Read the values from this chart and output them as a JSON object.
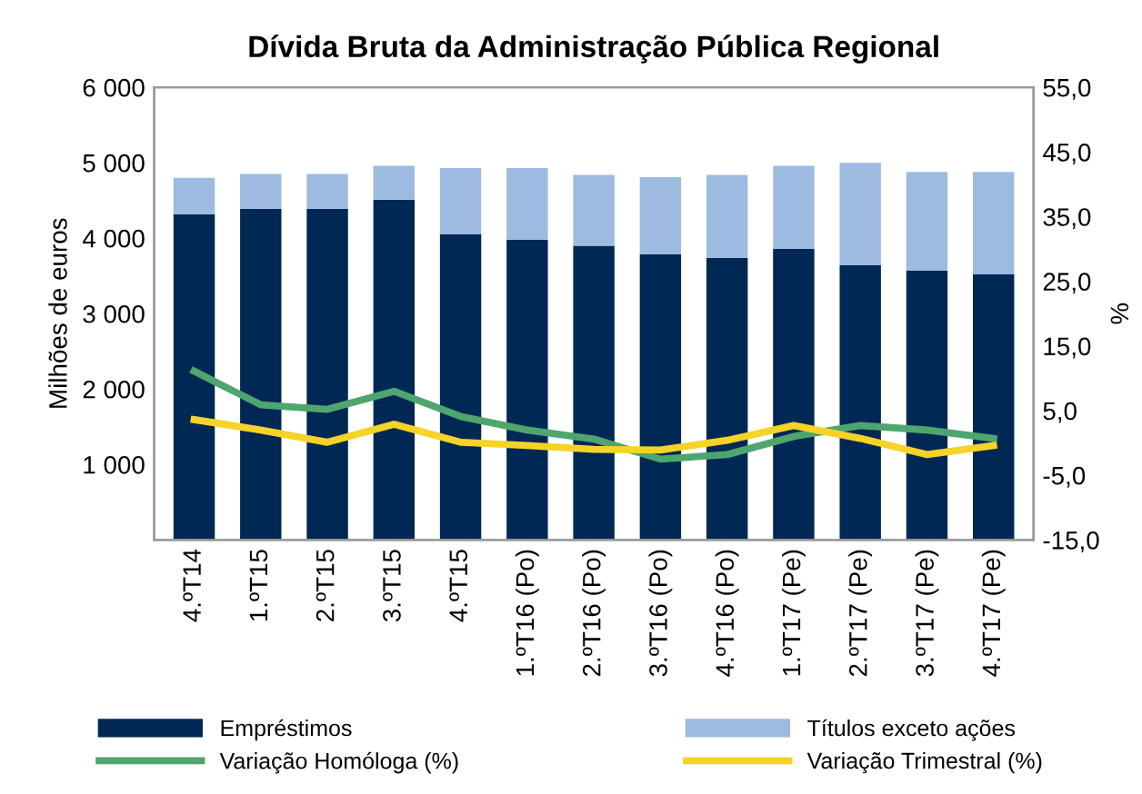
{
  "chart_data": {
    "type": "bar",
    "title": "Dívida Bruta da Administração Pública Regional",
    "ylabel": "Milhões de euros",
    "y2label": "%",
    "categories": [
      "4.ºT14",
      "1.ºT15",
      "2.ºT15",
      "3.ºT15",
      "4.ºT15",
      "1.ºT16 (Po)",
      "2.ºT16 (Po)",
      "3.ºT16 (Po)",
      "4.ºT16 (Po)",
      "1.ºT17 (Pe)",
      "2.ºT17 (Pe)",
      "3.ºT17 (Pe)",
      "4.ºT17 (Pe)"
    ],
    "stacked": true,
    "legend": "bottom",
    "grid": false,
    "ylim": [
      0,
      6000
    ],
    "yticks": [
      {
        "value": 0,
        "label": null
      },
      {
        "value": 1000,
        "label": "1 000"
      },
      {
        "value": 2000,
        "label": "2 000"
      },
      {
        "value": 3000,
        "label": "3 000"
      },
      {
        "value": 4000,
        "label": "4 000"
      },
      {
        "value": 5000,
        "label": "5 000"
      },
      {
        "value": 6000,
        "label": "6 000"
      }
    ],
    "y2lim": [
      -15,
      55
    ],
    "y2ticks": [
      {
        "value": -15,
        "label": "-15,0"
      },
      {
        "value": -5,
        "label": "-5,0"
      },
      {
        "value": 5,
        "label": "5,0"
      },
      {
        "value": 15,
        "label": "15,0"
      },
      {
        "value": 25,
        "label": "25,0"
      },
      {
        "value": 35,
        "label": "35,0"
      },
      {
        "value": 45,
        "label": "45,0"
      },
      {
        "value": 55,
        "label": "55,0"
      }
    ],
    "series": [
      {
        "name": "Empréstimos",
        "color": "#002855",
        "values": [
          4320,
          4390,
          4390,
          4510,
          4050,
          3980,
          3900,
          3790,
          3740,
          3860,
          3640,
          3570,
          3520
        ]
      },
      {
        "name": "Títulos exceto ações",
        "color": "#9dbbe1",
        "values": [
          480,
          460,
          460,
          450,
          880,
          950,
          940,
          1020,
          1100,
          1100,
          1360,
          1310,
          1360
        ]
      },
      {
        "name": "Variação Homóloga (%)",
        "type": "line",
        "axis": "y2",
        "color": "#4ea66e",
        "values": [
          11.1,
          5.9,
          5.2,
          8.0,
          4.1,
          2.0,
          0.6,
          -2.5,
          -1.8,
          1.0,
          2.7,
          2.0,
          0.7
        ]
      },
      {
        "name": "Variação Trimestral (%)",
        "type": "line",
        "axis": "y2",
        "color": "#f5d327",
        "values": [
          3.6,
          2.0,
          0.1,
          2.9,
          0.1,
          -0.4,
          -1.0,
          -1.1,
          0.4,
          2.7,
          0.7,
          -1.8,
          -0.4
        ]
      }
    ]
  }
}
